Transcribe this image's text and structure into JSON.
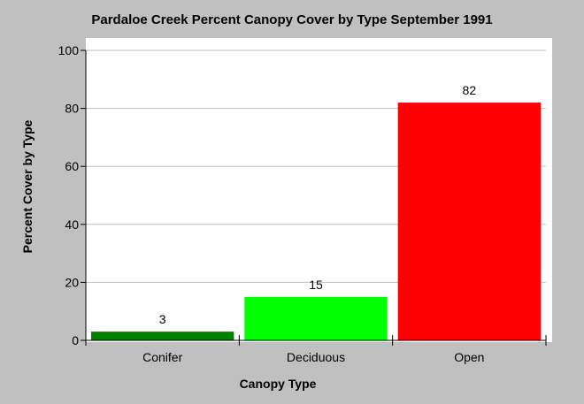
{
  "chart_data": {
    "type": "bar",
    "title": "Pardaloe Creek Percent Canopy Cover by Type September 1991",
    "xlabel": "Canopy Type",
    "ylabel": "Percent Cover by Type",
    "categories": [
      "Conifer",
      "Deciduous",
      "Open"
    ],
    "values": [
      3,
      15,
      82
    ],
    "bar_colors": [
      "#008000",
      "#00ff00",
      "#ff0000"
    ],
    "ylim": [
      0,
      100
    ],
    "yticks": [
      0,
      20,
      40,
      60,
      80,
      100
    ],
    "grid": true,
    "data_labels": true,
    "background_color": "#c0c0c0",
    "plot_background_color": "#ffffff"
  }
}
